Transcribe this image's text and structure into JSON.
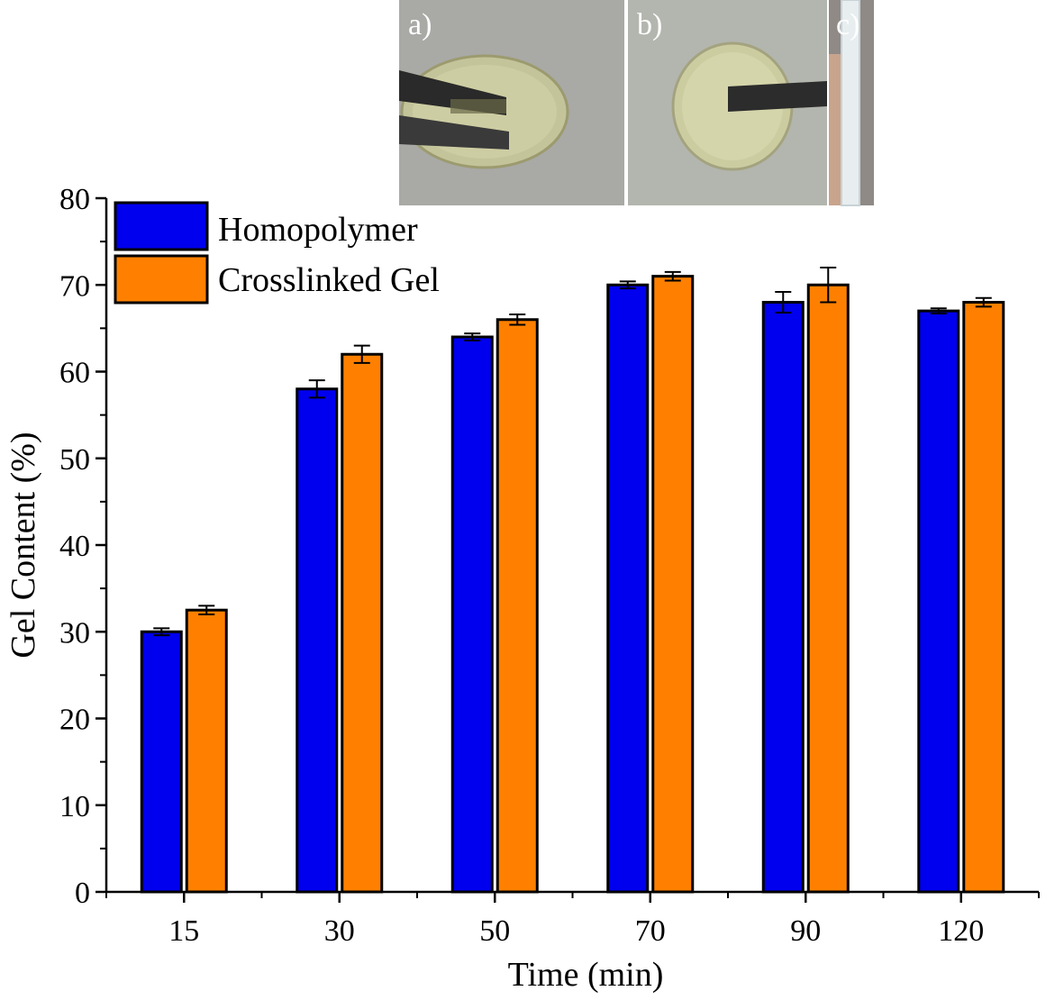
{
  "chart_data": {
    "type": "bar",
    "xlabel": "Time (min)",
    "ylabel": "Gel Content (%)",
    "ylim": [
      0,
      80
    ],
    "yticks": [
      0,
      10,
      20,
      30,
      40,
      50,
      60,
      70,
      80
    ],
    "categories": [
      "15",
      "30",
      "50",
      "70",
      "90",
      "120"
    ],
    "series": [
      {
        "name": "Homopolymer",
        "color": "#0000ee",
        "values": [
          30,
          58,
          64,
          70,
          68,
          67
        ],
        "errors": [
          0.4,
          1.0,
          0.4,
          0.4,
          1.2,
          0.3
        ]
      },
      {
        "name": "Crosslinked Gel",
        "color": "#ff8000",
        "values": [
          32.5,
          62,
          66,
          71,
          70,
          68
        ],
        "errors": [
          0.5,
          1.0,
          0.6,
          0.5,
          2.0,
          0.5
        ]
      }
    ],
    "legend_position": "top-left",
    "grid": false
  },
  "photo_panels": {
    "labels": [
      "a)",
      "b)",
      "c)"
    ],
    "icons": [
      "gel-disc-held-by-tweezers-photo",
      "gel-disc-held-by-tweezers-photo",
      "gel-in-glass-tube-photo"
    ]
  }
}
